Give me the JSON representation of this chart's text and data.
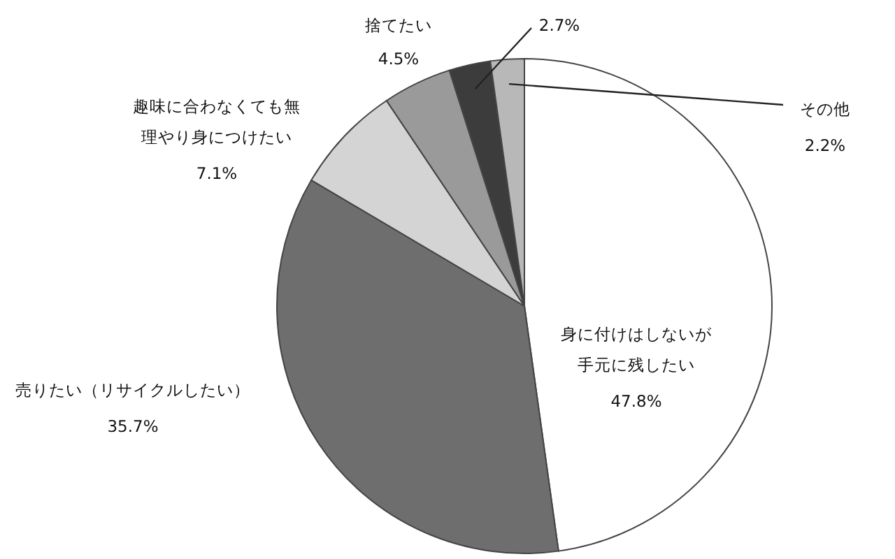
{
  "chart_data": {
    "type": "pie",
    "categories": [
      "身に付けはしないが手元に残したい",
      "売りたい（リサイクルしたい）",
      "趣味に合わなくても無理やり身につけたい",
      "捨てたい",
      null,
      "その他"
    ],
    "values": [
      47.8,
      35.7,
      7.1,
      4.5,
      2.7,
      2.2
    ],
    "value_labels": [
      "47.8%",
      "35.7%",
      "7.1%",
      "4.5%",
      "2.7%",
      "2.2%"
    ],
    "colors": [
      "#ffffff",
      "#6e6e6e",
      "#d4d4d4",
      "#9a9a9a",
      "#3c3c3c",
      "#b8b8b8"
    ],
    "legend": false
  }
}
